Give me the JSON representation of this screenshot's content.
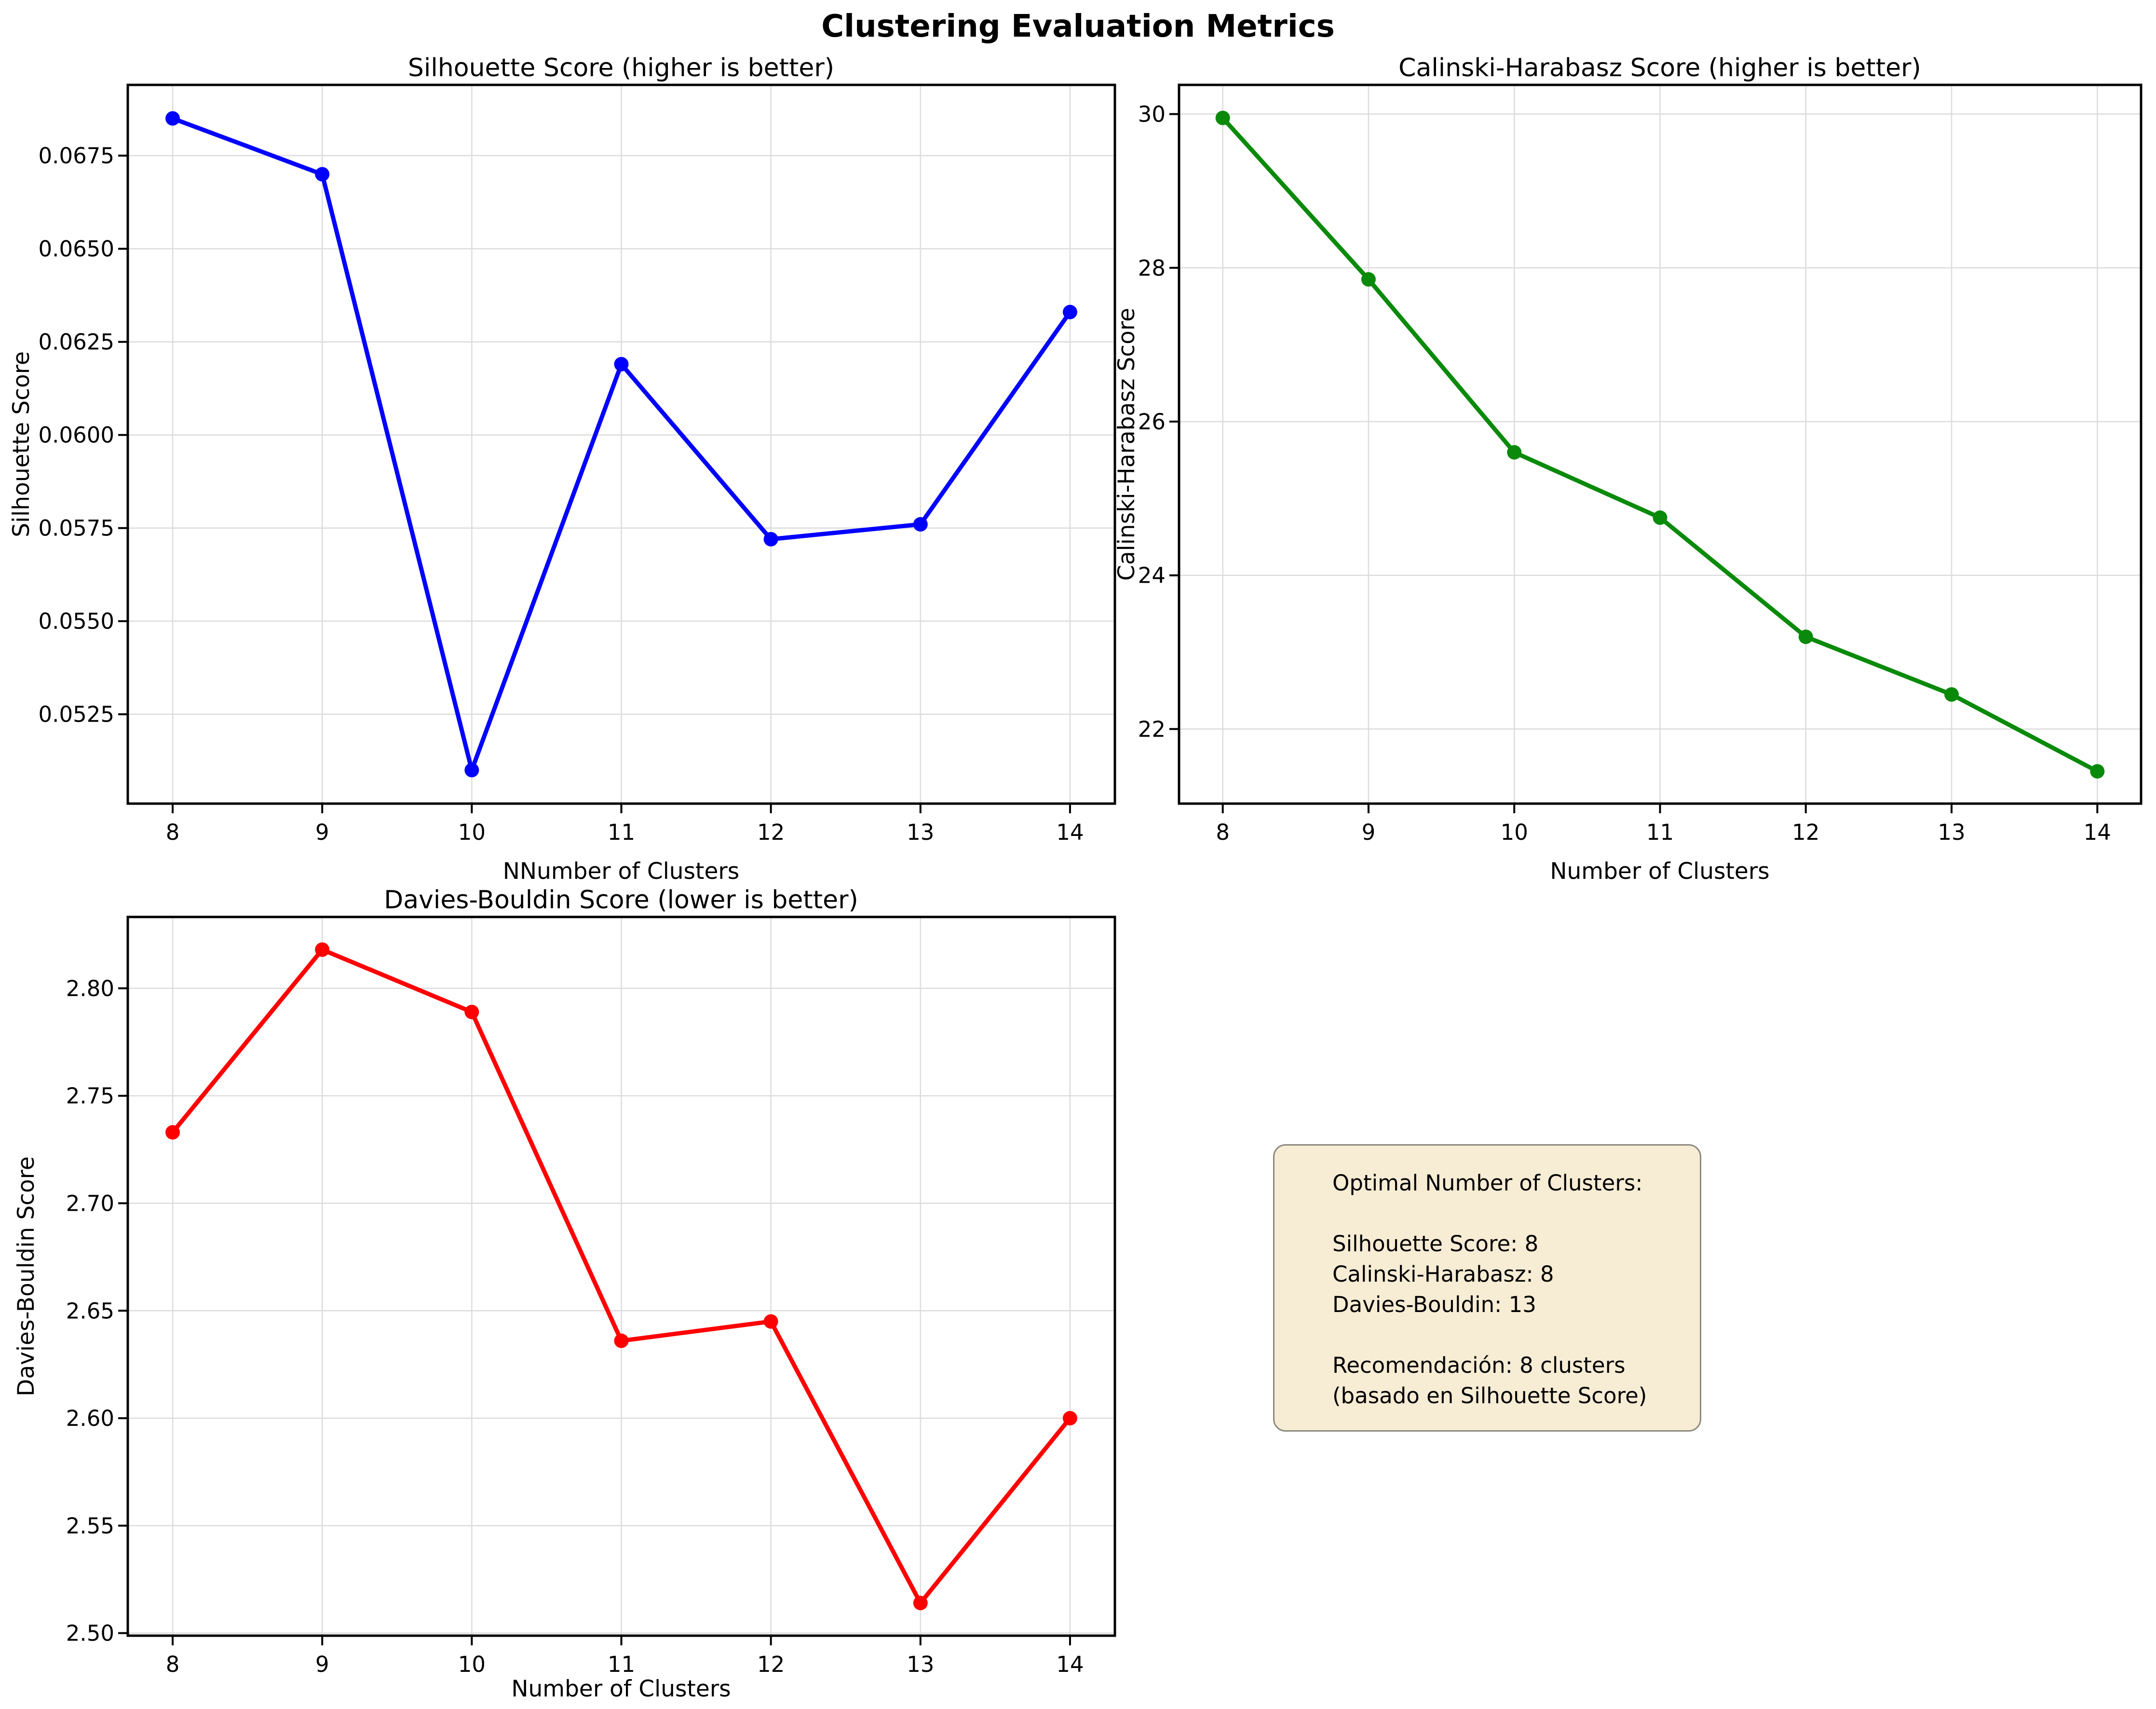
{
  "figure": {
    "suptitle": "Clustering Evaluation Metrics",
    "background": "#ffffff"
  },
  "chart_data": [
    {
      "id": "silhouette",
      "type": "line",
      "title": "Silhouette Score (higher is better)",
      "xlabel": "NNumber of Clusters",
      "ylabel": "Silhouette Score",
      "line_color": "#0000ff",
      "marker": "o",
      "grid": true,
      "x": [
        8,
        9,
        10,
        11,
        12,
        13,
        14
      ],
      "values": [
        0.0685,
        0.067,
        0.051,
        0.0619,
        0.0572,
        0.0576,
        0.0633
      ],
      "xlim": [
        7.7,
        14.3
      ],
      "ylim": [
        0.0501,
        0.0694
      ],
      "x_ticks": [
        8,
        9,
        10,
        11,
        12,
        13,
        14
      ],
      "x_tick_labels": [
        "8",
        "9",
        "10",
        "11",
        "12",
        "13",
        "14"
      ],
      "y_ticks": [
        0.0525,
        0.055,
        0.0575,
        0.06,
        0.0625,
        0.065,
        0.0675
      ],
      "y_tick_labels": [
        "0.0525",
        "0.0550",
        "0.0575",
        "0.0600",
        "0.0625",
        "0.0650",
        "0.0675"
      ]
    },
    {
      "id": "calinski",
      "type": "line",
      "title": "Calinski-Harabasz Score (higher is better)",
      "xlabel": "Number of Clusters",
      "ylabel": "Calinski-Harabasz Score",
      "line_color": "#0a8a0a",
      "marker": "o",
      "grid": true,
      "x": [
        8,
        9,
        10,
        11,
        12,
        13,
        14
      ],
      "values": [
        29.95,
        27.85,
        25.6,
        24.75,
        23.2,
        22.45,
        21.45
      ],
      "xlim": [
        7.7,
        14.3
      ],
      "ylim": [
        21.03,
        30.38
      ],
      "x_ticks": [
        8,
        9,
        10,
        11,
        12,
        13,
        14
      ],
      "x_tick_labels": [
        "8",
        "9",
        "10",
        "11",
        "12",
        "13",
        "14"
      ],
      "y_ticks": [
        22,
        24,
        26,
        28,
        30
      ],
      "y_tick_labels": [
        "22",
        "24",
        "26",
        "28",
        "30"
      ]
    },
    {
      "id": "davies",
      "type": "line",
      "title": "Davies-Bouldin Score (lower is better)",
      "xlabel": "Number of Clusters",
      "ylabel": "Davies-Bouldin Score",
      "line_color": "#ff0000",
      "marker": "o",
      "grid": true,
      "x": [
        8,
        9,
        10,
        11,
        12,
        13,
        14
      ],
      "values": [
        2.733,
        2.818,
        2.789,
        2.636,
        2.645,
        2.514,
        2.6
      ],
      "xlim": [
        7.7,
        14.3
      ],
      "ylim": [
        2.4988,
        2.8332
      ],
      "x_ticks": [
        8,
        9,
        10,
        11,
        12,
        13,
        14
      ],
      "x_tick_labels": [
        "8",
        "9",
        "10",
        "11",
        "12",
        "13",
        "14"
      ],
      "y_ticks": [
        2.5,
        2.55,
        2.6,
        2.65,
        2.7,
        2.75,
        2.8
      ],
      "y_tick_labels": [
        "2.50",
        "2.55",
        "2.60",
        "2.65",
        "2.70",
        "2.75",
        "2.80"
      ]
    }
  ],
  "annotation_box": {
    "lines": [
      "Optimal Number of Clusters:",
      "",
      "Silhouette Score: 8",
      "Calinski-Harabasz: 8",
      "Davies-Bouldin: 13",
      "",
      "Recomendación: 8 clusters",
      "(basado en Silhouette Score)"
    ],
    "background": "#f7ecd4",
    "border_color": "#8b897f"
  }
}
